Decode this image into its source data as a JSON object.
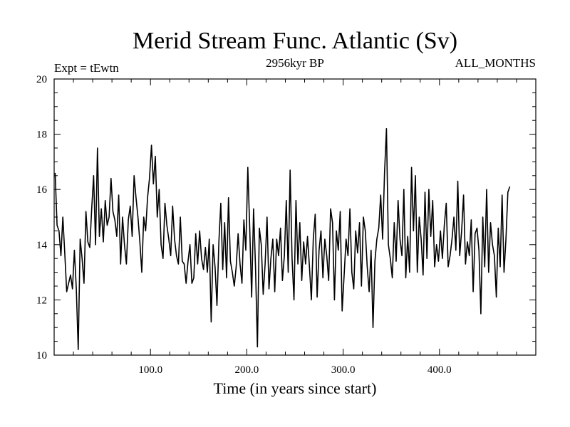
{
  "chart_data": {
    "type": "line",
    "title": "Merid Stream Func. Atlantic (Sv)",
    "experiment_label": "Expt = tEwtn",
    "period_label": "2956kyr BP",
    "months_label": "ALL_MONTHS",
    "xlabel": "Time (in years since start)",
    "ylabel": "",
    "xlim": [
      0,
      500
    ],
    "ylim": [
      10,
      20
    ],
    "x_ticks": [
      {
        "value": 100,
        "label": "100.0"
      },
      {
        "value": 200,
        "label": "200.0"
      },
      {
        "value": 300,
        "label": "300.0"
      },
      {
        "value": 400,
        "label": "400.0"
      }
    ],
    "y_ticks": [
      {
        "value": 10,
        "label": "10"
      },
      {
        "value": 12,
        "label": "12"
      },
      {
        "value": 14,
        "label": "14"
      },
      {
        "value": 16,
        "label": "16"
      },
      {
        "value": 18,
        "label": "18"
      },
      {
        "value": 20,
        "label": "20"
      }
    ],
    "series": [
      {
        "name": "Merid Stream Func. Atlantic",
        "color": "#000000",
        "x_start": 1,
        "x_step": 2,
        "values": [
          16.6,
          14.7,
          14.5,
          13.6,
          15.0,
          13.7,
          12.3,
          12.6,
          12.9,
          12.4,
          13.8,
          12.4,
          10.2,
          14.2,
          13.5,
          12.6,
          15.2,
          14.1,
          13.9,
          15.3,
          16.5,
          14.0,
          17.5,
          14.3,
          15.3,
          14.1,
          15.6,
          14.7,
          15.0,
          16.4,
          15.2,
          14.9,
          14.3,
          15.8,
          13.3,
          15.0,
          14.0,
          13.3,
          14.9,
          15.4,
          14.3,
          16.5,
          15.7,
          15.0,
          14.1,
          13.0,
          15.0,
          14.5,
          15.7,
          16.4,
          17.6,
          16.2,
          17.2,
          15.0,
          16.0,
          14.0,
          13.5,
          15.5,
          14.7,
          14.2,
          13.6,
          15.4,
          14.2,
          13.6,
          13.3,
          15.0,
          13.4,
          13.3,
          12.6,
          13.4,
          14.0,
          12.6,
          12.8,
          14.4,
          13.3,
          14.5,
          13.5,
          13.1,
          13.9,
          13.0,
          14.2,
          11.2,
          14.0,
          13.2,
          11.8,
          14.1,
          15.5,
          13.1,
          14.8,
          12.8,
          15.7,
          13.4,
          13.0,
          12.5,
          13.2,
          14.4,
          13.3,
          12.6,
          14.9,
          13.8,
          16.8,
          14.6,
          12.1,
          15.3,
          13.2,
          10.3,
          14.6,
          14.0,
          12.2,
          13.3,
          15.0,
          12.4,
          13.5,
          14.2,
          12.3,
          14.2,
          13.6,
          14.6,
          12.7,
          13.6,
          15.6,
          13.0,
          16.7,
          13.5,
          12.0,
          15.6,
          13.3,
          14.8,
          12.7,
          14.1,
          13.3,
          14.3,
          13.2,
          12.0,
          14.2,
          15.1,
          12.1,
          13.8,
          14.5,
          12.8,
          14.2,
          13.6,
          12.7,
          15.3,
          14.8,
          12.0,
          14.5,
          13.8,
          15.2,
          11.6,
          12.9,
          14.2,
          13.6,
          15.3,
          13.0,
          12.4,
          14.5,
          13.7,
          14.8,
          12.5,
          15.0,
          14.5,
          13.2,
          12.3,
          13.8,
          11.0,
          13.4,
          14.2,
          14.6,
          15.8,
          14.2,
          16.6,
          18.2,
          14.0,
          13.5,
          12.8,
          14.8,
          13.4,
          15.6,
          14.2,
          13.6,
          16.0,
          12.8,
          14.3,
          13.0,
          16.8,
          14.5,
          16.5,
          13.0,
          15.0,
          14.2,
          12.9,
          15.9,
          13.5,
          16.0,
          14.3,
          15.6,
          13.2,
          14.0,
          13.4,
          14.5,
          13.5,
          14.7,
          15.5,
          13.2,
          13.6,
          14.2,
          15.0,
          13.8,
          16.3,
          13.6,
          14.5,
          15.8,
          13.3,
          14.1,
          13.6,
          14.9,
          12.3,
          14.4,
          14.6,
          13.8,
          11.5,
          15.0,
          13.2,
          16.0,
          13.0,
          14.8,
          14.0,
          13.6,
          12.1,
          14.6,
          13.2,
          15.8,
          13.0,
          14.2,
          15.9,
          16.1
        ]
      }
    ]
  }
}
